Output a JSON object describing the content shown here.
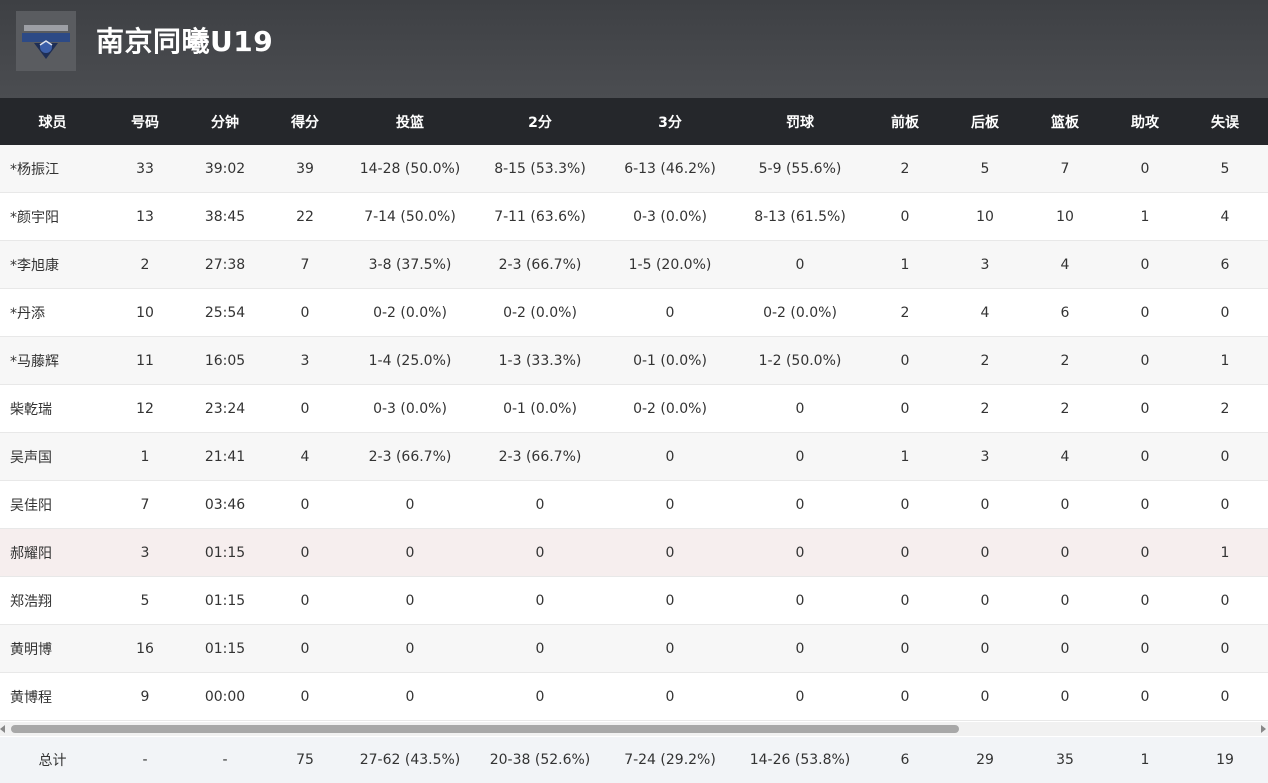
{
  "team": {
    "name": "南京同曦U19",
    "logo_icon": "team-logo-icon"
  },
  "columns": [
    "球员",
    "号码",
    "分钟",
    "得分",
    "投篮",
    "2分",
    "3分",
    "罚球",
    "前板",
    "后板",
    "篮板",
    "助攻",
    "失误"
  ],
  "players": [
    {
      "name": "*杨振江",
      "num": "33",
      "min": "39:02",
      "pts": "39",
      "fg": "14-28 (50.0%)",
      "p2": "8-15 (53.3%)",
      "p3": "6-13 (46.2%)",
      "ft": "5-9 (55.6%)",
      "or": "2",
      "dr": "5",
      "reb": "7",
      "ast": "0",
      "to": "5"
    },
    {
      "name": "*颜宇阳",
      "num": "13",
      "min": "38:45",
      "pts": "22",
      "fg": "7-14 (50.0%)",
      "p2": "7-11 (63.6%)",
      "p3": "0-3 (0.0%)",
      "ft": "8-13 (61.5%)",
      "or": "0",
      "dr": "10",
      "reb": "10",
      "ast": "1",
      "to": "4"
    },
    {
      "name": "*李旭康",
      "num": "2",
      "min": "27:38",
      "pts": "7",
      "fg": "3-8 (37.5%)",
      "p2": "2-3 (66.7%)",
      "p3": "1-5 (20.0%)",
      "ft": "0",
      "or": "1",
      "dr": "3",
      "reb": "4",
      "ast": "0",
      "to": "6"
    },
    {
      "name": "*丹添",
      "num": "10",
      "min": "25:54",
      "pts": "0",
      "fg": "0-2 (0.0%)",
      "p2": "0-2 (0.0%)",
      "p3": "0",
      "ft": "0-2 (0.0%)",
      "or": "2",
      "dr": "4",
      "reb": "6",
      "ast": "0",
      "to": "0"
    },
    {
      "name": "*马藤辉",
      "num": "11",
      "min": "16:05",
      "pts": "3",
      "fg": "1-4 (25.0%)",
      "p2": "1-3 (33.3%)",
      "p3": "0-1 (0.0%)",
      "ft": "1-2 (50.0%)",
      "or": "0",
      "dr": "2",
      "reb": "2",
      "ast": "0",
      "to": "1"
    },
    {
      "name": "柴乾瑞",
      "num": "12",
      "min": "23:24",
      "pts": "0",
      "fg": "0-3 (0.0%)",
      "p2": "0-1 (0.0%)",
      "p3": "0-2 (0.0%)",
      "ft": "0",
      "or": "0",
      "dr": "2",
      "reb": "2",
      "ast": "0",
      "to": "2"
    },
    {
      "name": "吴声国",
      "num": "1",
      "min": "21:41",
      "pts": "4",
      "fg": "2-3 (66.7%)",
      "p2": "2-3 (66.7%)",
      "p3": "0",
      "ft": "0",
      "or": "1",
      "dr": "3",
      "reb": "4",
      "ast": "0",
      "to": "0"
    },
    {
      "name": "吴佳阳",
      "num": "7",
      "min": "03:46",
      "pts": "0",
      "fg": "0",
      "p2": "0",
      "p3": "0",
      "ft": "0",
      "or": "0",
      "dr": "0",
      "reb": "0",
      "ast": "0",
      "to": "0"
    },
    {
      "name": "郝耀阳",
      "num": "3",
      "min": "01:15",
      "pts": "0",
      "fg": "0",
      "p2": "0",
      "p3": "0",
      "ft": "0",
      "or": "0",
      "dr": "0",
      "reb": "0",
      "ast": "0",
      "to": "1"
    },
    {
      "name": "郑浩翔",
      "num": "5",
      "min": "01:15",
      "pts": "0",
      "fg": "0",
      "p2": "0",
      "p3": "0",
      "ft": "0",
      "or": "0",
      "dr": "0",
      "reb": "0",
      "ast": "0",
      "to": "0"
    },
    {
      "name": "黄明博",
      "num": "16",
      "min": "01:15",
      "pts": "0",
      "fg": "0",
      "p2": "0",
      "p3": "0",
      "ft": "0",
      "or": "0",
      "dr": "0",
      "reb": "0",
      "ast": "0",
      "to": "0"
    },
    {
      "name": "黄博程",
      "num": "9",
      "min": "00:00",
      "pts": "0",
      "fg": "0",
      "p2": "0",
      "p3": "0",
      "ft": "0",
      "or": "0",
      "dr": "0",
      "reb": "0",
      "ast": "0",
      "to": "0"
    }
  ],
  "total": {
    "name": "总计",
    "num": "-",
    "min": "-",
    "pts": "75",
    "fg": "27-62 (43.5%)",
    "p2": "20-38 (52.6%)",
    "p3": "7-24 (29.2%)",
    "ft": "14-26 (53.8%)",
    "or": "6",
    "dr": "29",
    "reb": "35",
    "ast": "1",
    "to": "19"
  },
  "colors": {
    "header_bg": "#45474b",
    "table_head_bg": "#25272b",
    "highlight_row": "#f6eeee",
    "total_bg": "#f2f4f7"
  }
}
